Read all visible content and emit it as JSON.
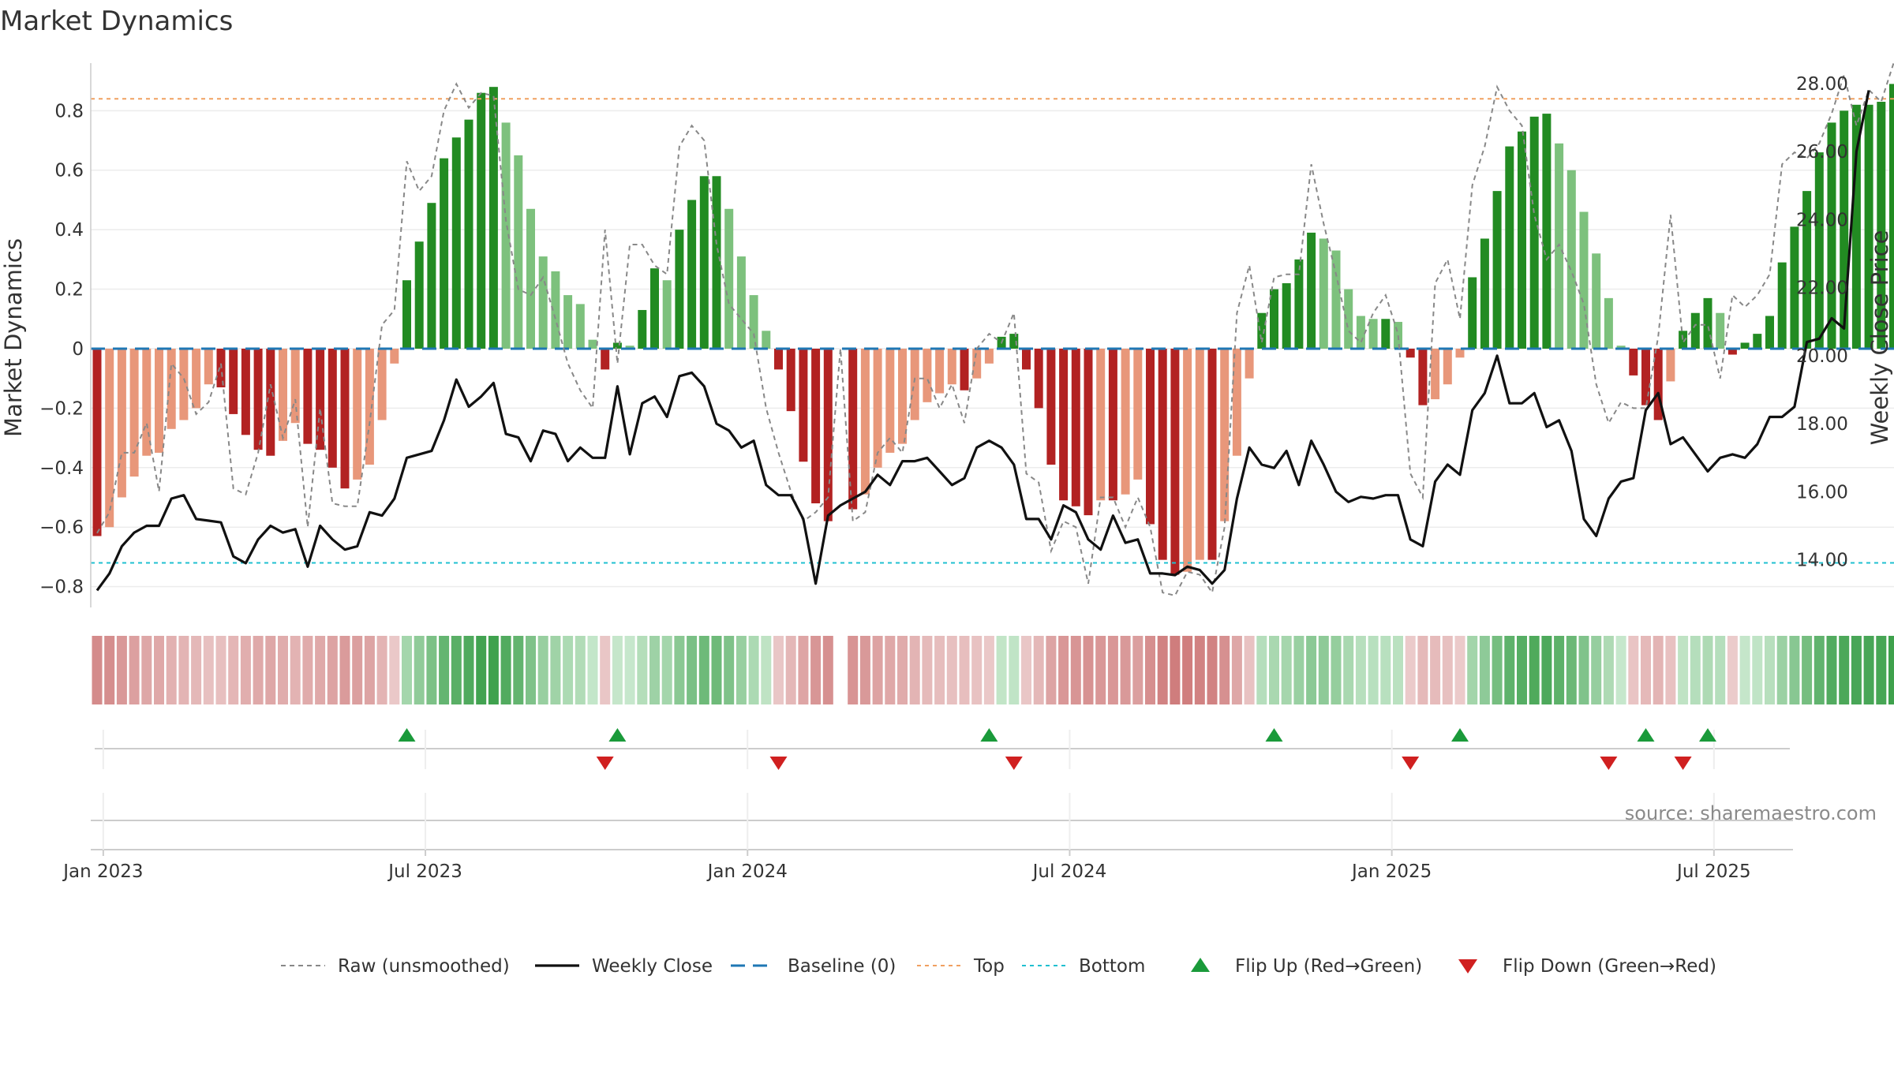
{
  "chart_data": {
    "type": "bar",
    "title": "Market Dynamics",
    "ylabel_left": "Market Dynamics",
    "ylabel_right": "Weekly Close Price",
    "ylim_left": [
      -0.87,
      0.96
    ],
    "ylim_right": [
      12.6,
      28.6
    ],
    "left_ticks": [
      "0.8",
      "0.6",
      "0.4",
      "0.2",
      "0",
      "−0.2",
      "−0.4",
      "−0.6",
      "−0.8"
    ],
    "left_tick_values": [
      0.8,
      0.6,
      0.4,
      0.2,
      0,
      -0.2,
      -0.4,
      -0.6,
      -0.8
    ],
    "right_ticks": [
      "28.00",
      "26.00",
      "24.00",
      "22.00",
      "20.00",
      "18.00",
      "16.00",
      "14.00"
    ],
    "right_tick_values": [
      28,
      26,
      24,
      22,
      20,
      18,
      16,
      14
    ],
    "x_ticks": [
      "Jan 2023",
      "Jul 2023",
      "Jan 2024",
      "Jul 2024",
      "Jan 2025",
      "Jul 2025"
    ],
    "x_tick_weeks": [
      0.5,
      26.5,
      52.5,
      78.5,
      104.5,
      130.5
    ],
    "top_level": 0.84,
    "bottom_level": -0.72,
    "baseline": 0,
    "start_date": "2022-12-26",
    "gap_week": 60,
    "dynamics": [
      -0.63,
      -0.6,
      -0.5,
      -0.43,
      -0.36,
      -0.35,
      -0.27,
      -0.24,
      -0.2,
      -0.12,
      -0.13,
      -0.22,
      -0.29,
      -0.34,
      -0.36,
      -0.31,
      -0.25,
      -0.32,
      -0.34,
      -0.4,
      -0.47,
      -0.44,
      -0.39,
      -0.24,
      -0.05,
      0.23,
      0.36,
      0.49,
      0.64,
      0.71,
      0.77,
      0.86,
      0.88,
      0.76,
      0.65,
      0.47,
      0.31,
      0.26,
      0.18,
      0.15,
      0.03,
      -0.07,
      0.02,
      0.01,
      0.13,
      0.27,
      0.23,
      0.4,
      0.5,
      0.58,
      0.58,
      0.47,
      0.31,
      0.18,
      0.06,
      -0.07,
      -0.21,
      -0.38,
      -0.52,
      -0.58,
      0,
      -0.54,
      -0.49,
      -0.4,
      -0.35,
      -0.32,
      -0.24,
      -0.18,
      -0.15,
      -0.12,
      -0.14,
      -0.1,
      -0.05,
      0.04,
      0.05,
      -0.07,
      -0.2,
      -0.39,
      -0.51,
      -0.53,
      -0.56,
      -0.51,
      -0.51,
      -0.49,
      -0.44,
      -0.59,
      -0.71,
      -0.76,
      -0.75,
      -0.71,
      -0.71,
      -0.58,
      -0.36,
      -0.1,
      0.12,
      0.2,
      0.22,
      0.3,
      0.39,
      0.37,
      0.33,
      0.2,
      0.11,
      0.1,
      0.1,
      0.09,
      -0.03,
      -0.19,
      -0.17,
      -0.12,
      -0.03,
      0.24,
      0.37,
      0.53,
      0.68,
      0.73,
      0.78,
      0.79,
      0.69,
      0.6,
      0.46,
      0.32,
      0.17,
      0.01,
      -0.09,
      -0.19,
      -0.24,
      -0.11,
      0.06,
      0.12,
      0.17,
      0.12,
      -0.02,
      0.02,
      0.05,
      0.11,
      0.29,
      0.41,
      0.53,
      0.66,
      0.76,
      0.8,
      0.82,
      0.82,
      0.83,
      0.89
    ],
    "raw": [
      -0.62,
      -0.55,
      -0.35,
      -0.35,
      -0.25,
      -0.48,
      -0.05,
      -0.1,
      -0.22,
      -0.18,
      -0.05,
      -0.47,
      -0.49,
      -0.35,
      -0.12,
      -0.3,
      -0.17,
      -0.6,
      -0.2,
      -0.52,
      -0.53,
      -0.53,
      -0.25,
      0.08,
      0.13,
      0.63,
      0.53,
      0.58,
      0.8,
      0.89,
      0.81,
      0.86,
      0.85,
      0.43,
      0.2,
      0.18,
      0.24,
      0.1,
      -0.05,
      -0.14,
      -0.2,
      0.4,
      -0.05,
      0.35,
      0.35,
      0.28,
      0.25,
      0.68,
      0.75,
      0.7,
      0.35,
      0.15,
      0.1,
      0.05,
      -0.2,
      -0.35,
      -0.48,
      -0.58,
      -0.55,
      -0.5,
      0,
      -0.58,
      -0.55,
      -0.35,
      -0.3,
      -0.35,
      -0.1,
      -0.1,
      -0.2,
      -0.12,
      -0.25,
      0,
      0.05,
      0.02,
      0.12,
      -0.42,
      -0.45,
      -0.68,
      -0.58,
      -0.6,
      -0.79,
      -0.5,
      -0.5,
      -0.6,
      -0.5,
      -0.6,
      -0.82,
      -0.83,
      -0.75,
      -0.76,
      -0.82,
      -0.6,
      0.12,
      0.28,
      0.02,
      0.24,
      0.25,
      0.25,
      0.62,
      0.42,
      0.25,
      0.06,
      0.02,
      0.12,
      0.18,
      0.05,
      -0.42,
      -0.5,
      0.22,
      0.3,
      0.1,
      0.55,
      0.68,
      0.88,
      0.8,
      0.75,
      0.45,
      0.3,
      0.35,
      0.26,
      0.15,
      -0.12,
      -0.25,
      -0.18,
      -0.2,
      -0.2,
      0.04,
      0.45,
      0.02,
      0.08,
      0.08,
      -0.1,
      0.18,
      0.14,
      0.18,
      0.25,
      0.62,
      0.66,
      0.64,
      0.69,
      0.79,
      0.92,
      0.75,
      0.87,
      0.83,
      0.96,
      0.98
    ],
    "close": [
      13.1,
      13.6,
      14.4,
      14.8,
      15,
      15,
      15.8,
      15.9,
      15.2,
      15.15,
      15.1,
      14.1,
      13.9,
      14.6,
      15,
      14.8,
      14.9,
      13.8,
      15,
      14.6,
      14.3,
      14.4,
      15.4,
      15.3,
      15.8,
      17,
      17.1,
      17.2,
      18.1,
      19.3,
      18.5,
      18.8,
      19.2,
      17.7,
      17.6,
      16.9,
      17.8,
      17.7,
      16.9,
      17.3,
      17,
      17,
      19.1,
      17.1,
      18.6,
      18.8,
      18.2,
      19.4,
      19.5,
      19.1,
      18,
      17.8,
      17.3,
      17.5,
      16.2,
      15.9,
      15.9,
      15.2,
      13.3,
      15.3,
      15.6,
      15.8,
      16,
      16.5,
      16.2,
      16.9,
      16.9,
      17,
      16.6,
      16.2,
      16.4,
      17.3,
      17.5,
      17.3,
      16.8,
      15.2,
      15.2,
      14.6,
      15.6,
      15.4,
      14.6,
      14.3,
      15.3,
      14.5,
      14.6,
      13.6,
      13.6,
      13.55,
      13.8,
      13.7,
      13.3,
      13.7,
      15.8,
      17.3,
      16.8,
      16.7,
      17.2,
      16.2,
      17.5,
      16.8,
      16,
      15.7,
      15.85,
      15.8,
      15.9,
      15.9,
      14.6,
      14.4,
      16.3,
      16.8,
      16.5,
      18.4,
      18.9,
      20,
      18.6,
      18.6,
      18.9,
      17.9,
      18.1,
      17.2,
      15.2,
      14.7,
      15.8,
      16.3,
      16.4,
      18.4,
      18.9,
      17.4,
      17.6,
      17.1,
      16.6,
      17,
      17.1,
      17,
      17.4,
      18.2,
      18.2,
      18.5,
      20.4,
      20.5,
      21.1,
      20.8,
      26,
      27.8
    ],
    "flip_up_weeks": [
      25,
      42,
      72,
      95,
      110,
      125,
      130
    ],
    "flip_down_weeks": [
      41,
      55,
      74,
      106,
      122,
      128
    ]
  },
  "legend": [
    {
      "label": "Raw (unsmoothed)",
      "style": "dashed",
      "color": "#888888"
    },
    {
      "label": "Weekly Close",
      "style": "solid",
      "color": "#111111"
    },
    {
      "label": "Baseline (0)",
      "style": "dashed-long",
      "color": "#1f77b4"
    },
    {
      "label": "Top",
      "style": "dotted",
      "color": "#f0a060"
    },
    {
      "label": "Bottom",
      "style": "dotted",
      "color": "#20c0d0"
    },
    {
      "label": "Flip Up (Red→Green)",
      "style": "triangle-up",
      "color": "#1a9a3a"
    },
    {
      "label": "Flip Down (Green→Red)",
      "style": "triangle-down",
      "color": "#d02020"
    }
  ],
  "source": "source: sharemaestro.com",
  "colors": {
    "strong_green": "#228b22",
    "fading_green": "#7dc17d",
    "strong_red": "#b22222",
    "fading_red": "#e8977a",
    "top_line": "#f0a060",
    "bottom_line": "#20c0d0",
    "baseline": "#1f77b4"
  }
}
